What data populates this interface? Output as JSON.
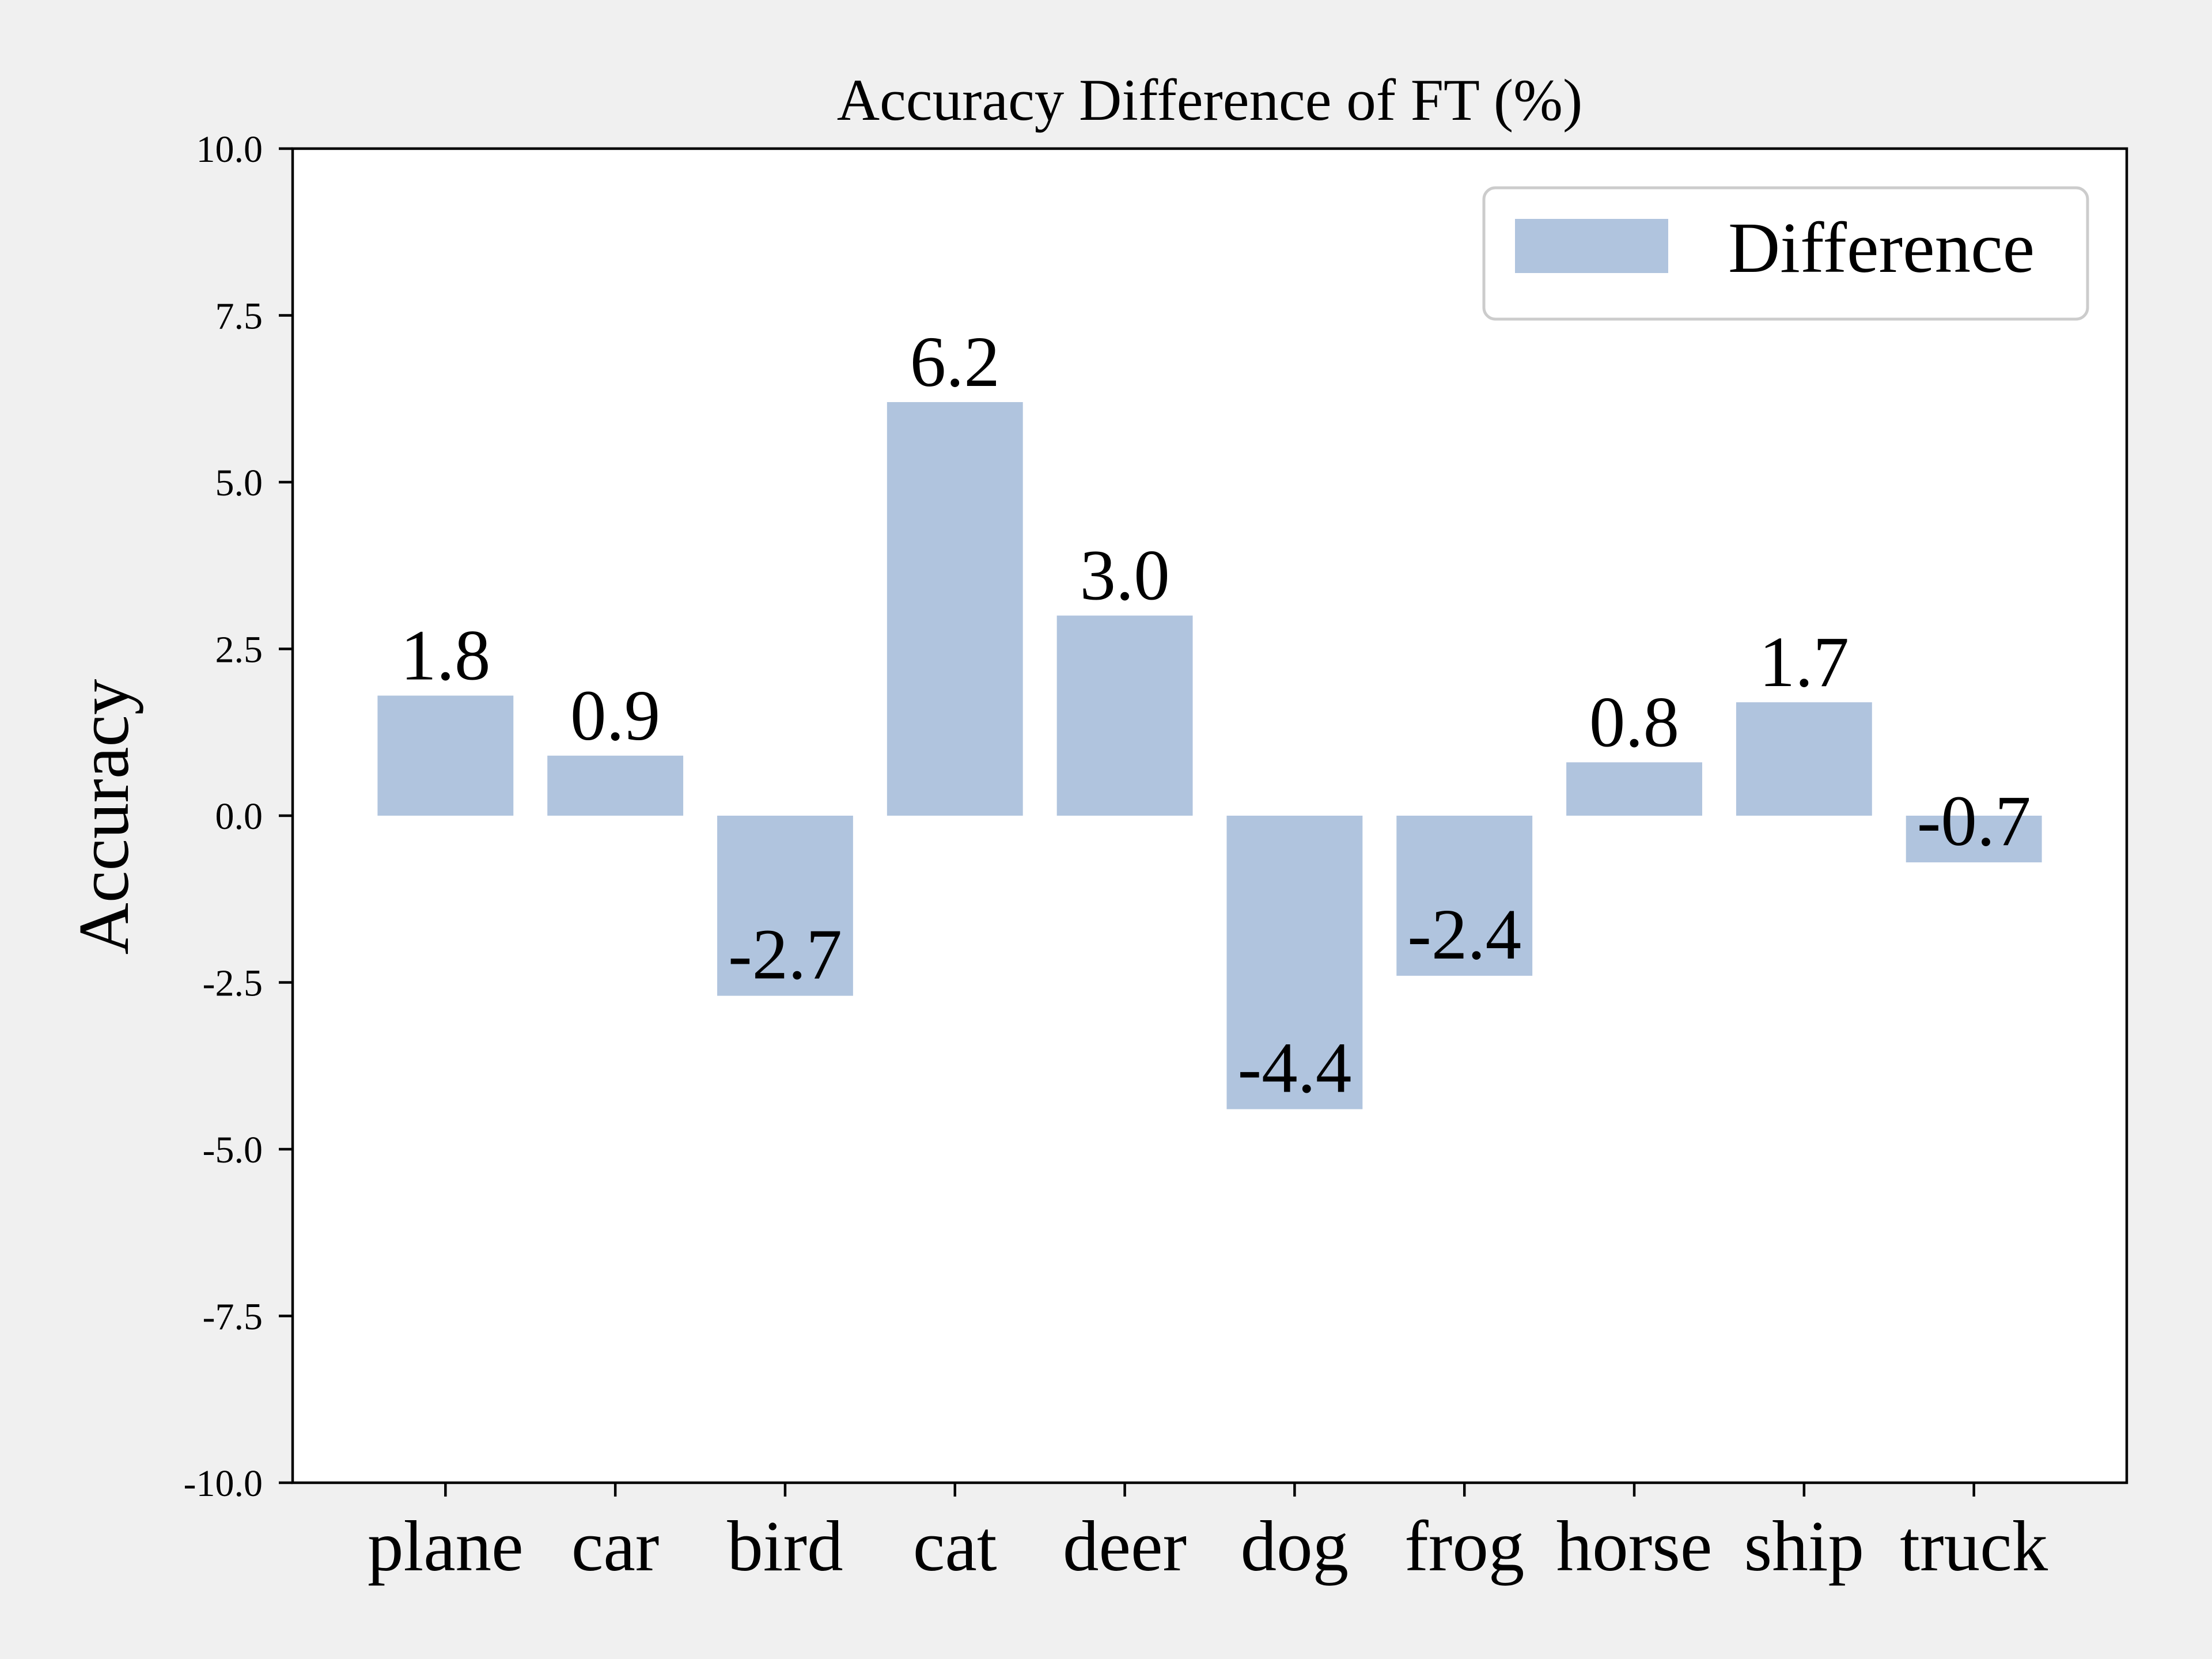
{
  "chart_data": {
    "type": "bar",
    "title": "Accuracy Difference of FT (%)",
    "xlabel": "",
    "ylabel": "Accuracy",
    "categories": [
      "plane",
      "car",
      "bird",
      "cat",
      "deer",
      "dog",
      "frog",
      "horse",
      "ship",
      "truck"
    ],
    "series": [
      {
        "name": "Difference",
        "values": [
          1.8,
          0.9,
          -2.7,
          6.2,
          3.0,
          -4.4,
          -2.4,
          0.8,
          1.7,
          -0.7
        ],
        "color": "#b0c4de"
      }
    ],
    "data_labels": [
      "1.8",
      "0.9",
      "-2.7",
      "6.2",
      "3.0",
      "-4.4",
      "-2.4",
      "0.8",
      "1.7",
      "-0.7"
    ],
    "ylim": [
      -10,
      10
    ],
    "yticks": [
      -10,
      -7.5,
      -5,
      -2.5,
      0,
      2.5,
      5,
      7.5,
      10
    ],
    "ytick_labels": [
      "-10.0",
      "-7.5",
      "-5.0",
      "-2.5",
      "0.0",
      "2.5",
      "5.0",
      "7.5",
      "10.0"
    ],
    "grid": false,
    "legend_position": "top-right"
  }
}
